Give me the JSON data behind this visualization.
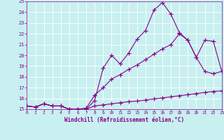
{
  "xlabel": "Windchill (Refroidissement éolien,°C)",
  "background_color": "#c8f0f0",
  "line_color": "#880088",
  "grid_color": "#ffffff",
  "xmin": 0,
  "xmax": 23,
  "ymin": 15,
  "ymax": 25,
  "x_values": [
    0,
    1,
    2,
    3,
    4,
    5,
    6,
    7,
    8,
    9,
    10,
    11,
    12,
    13,
    14,
    15,
    16,
    17,
    18,
    19,
    20,
    21,
    22,
    23
  ],
  "curve1_y": [
    15.3,
    15.2,
    15.5,
    15.3,
    15.3,
    15.0,
    15.0,
    15.0,
    15.8,
    18.8,
    20.0,
    19.2,
    20.2,
    21.5,
    22.3,
    24.2,
    24.9,
    23.8,
    22.1,
    21.4,
    19.8,
    21.4,
    21.3,
    18.5
  ],
  "curve2_y": [
    15.3,
    15.2,
    15.5,
    15.3,
    15.3,
    15.0,
    15.0,
    15.1,
    16.3,
    17.0,
    17.8,
    18.2,
    18.7,
    19.1,
    19.6,
    20.1,
    20.6,
    21.0,
    22.0,
    21.4,
    19.8,
    18.5,
    18.3,
    18.5
  ],
  "curve3_y": [
    15.3,
    15.2,
    15.5,
    15.3,
    15.3,
    15.0,
    15.0,
    15.0,
    15.3,
    15.4,
    15.5,
    15.6,
    15.7,
    15.75,
    15.85,
    15.95,
    16.05,
    16.15,
    16.25,
    16.35,
    16.45,
    16.55,
    16.65,
    16.7
  ]
}
